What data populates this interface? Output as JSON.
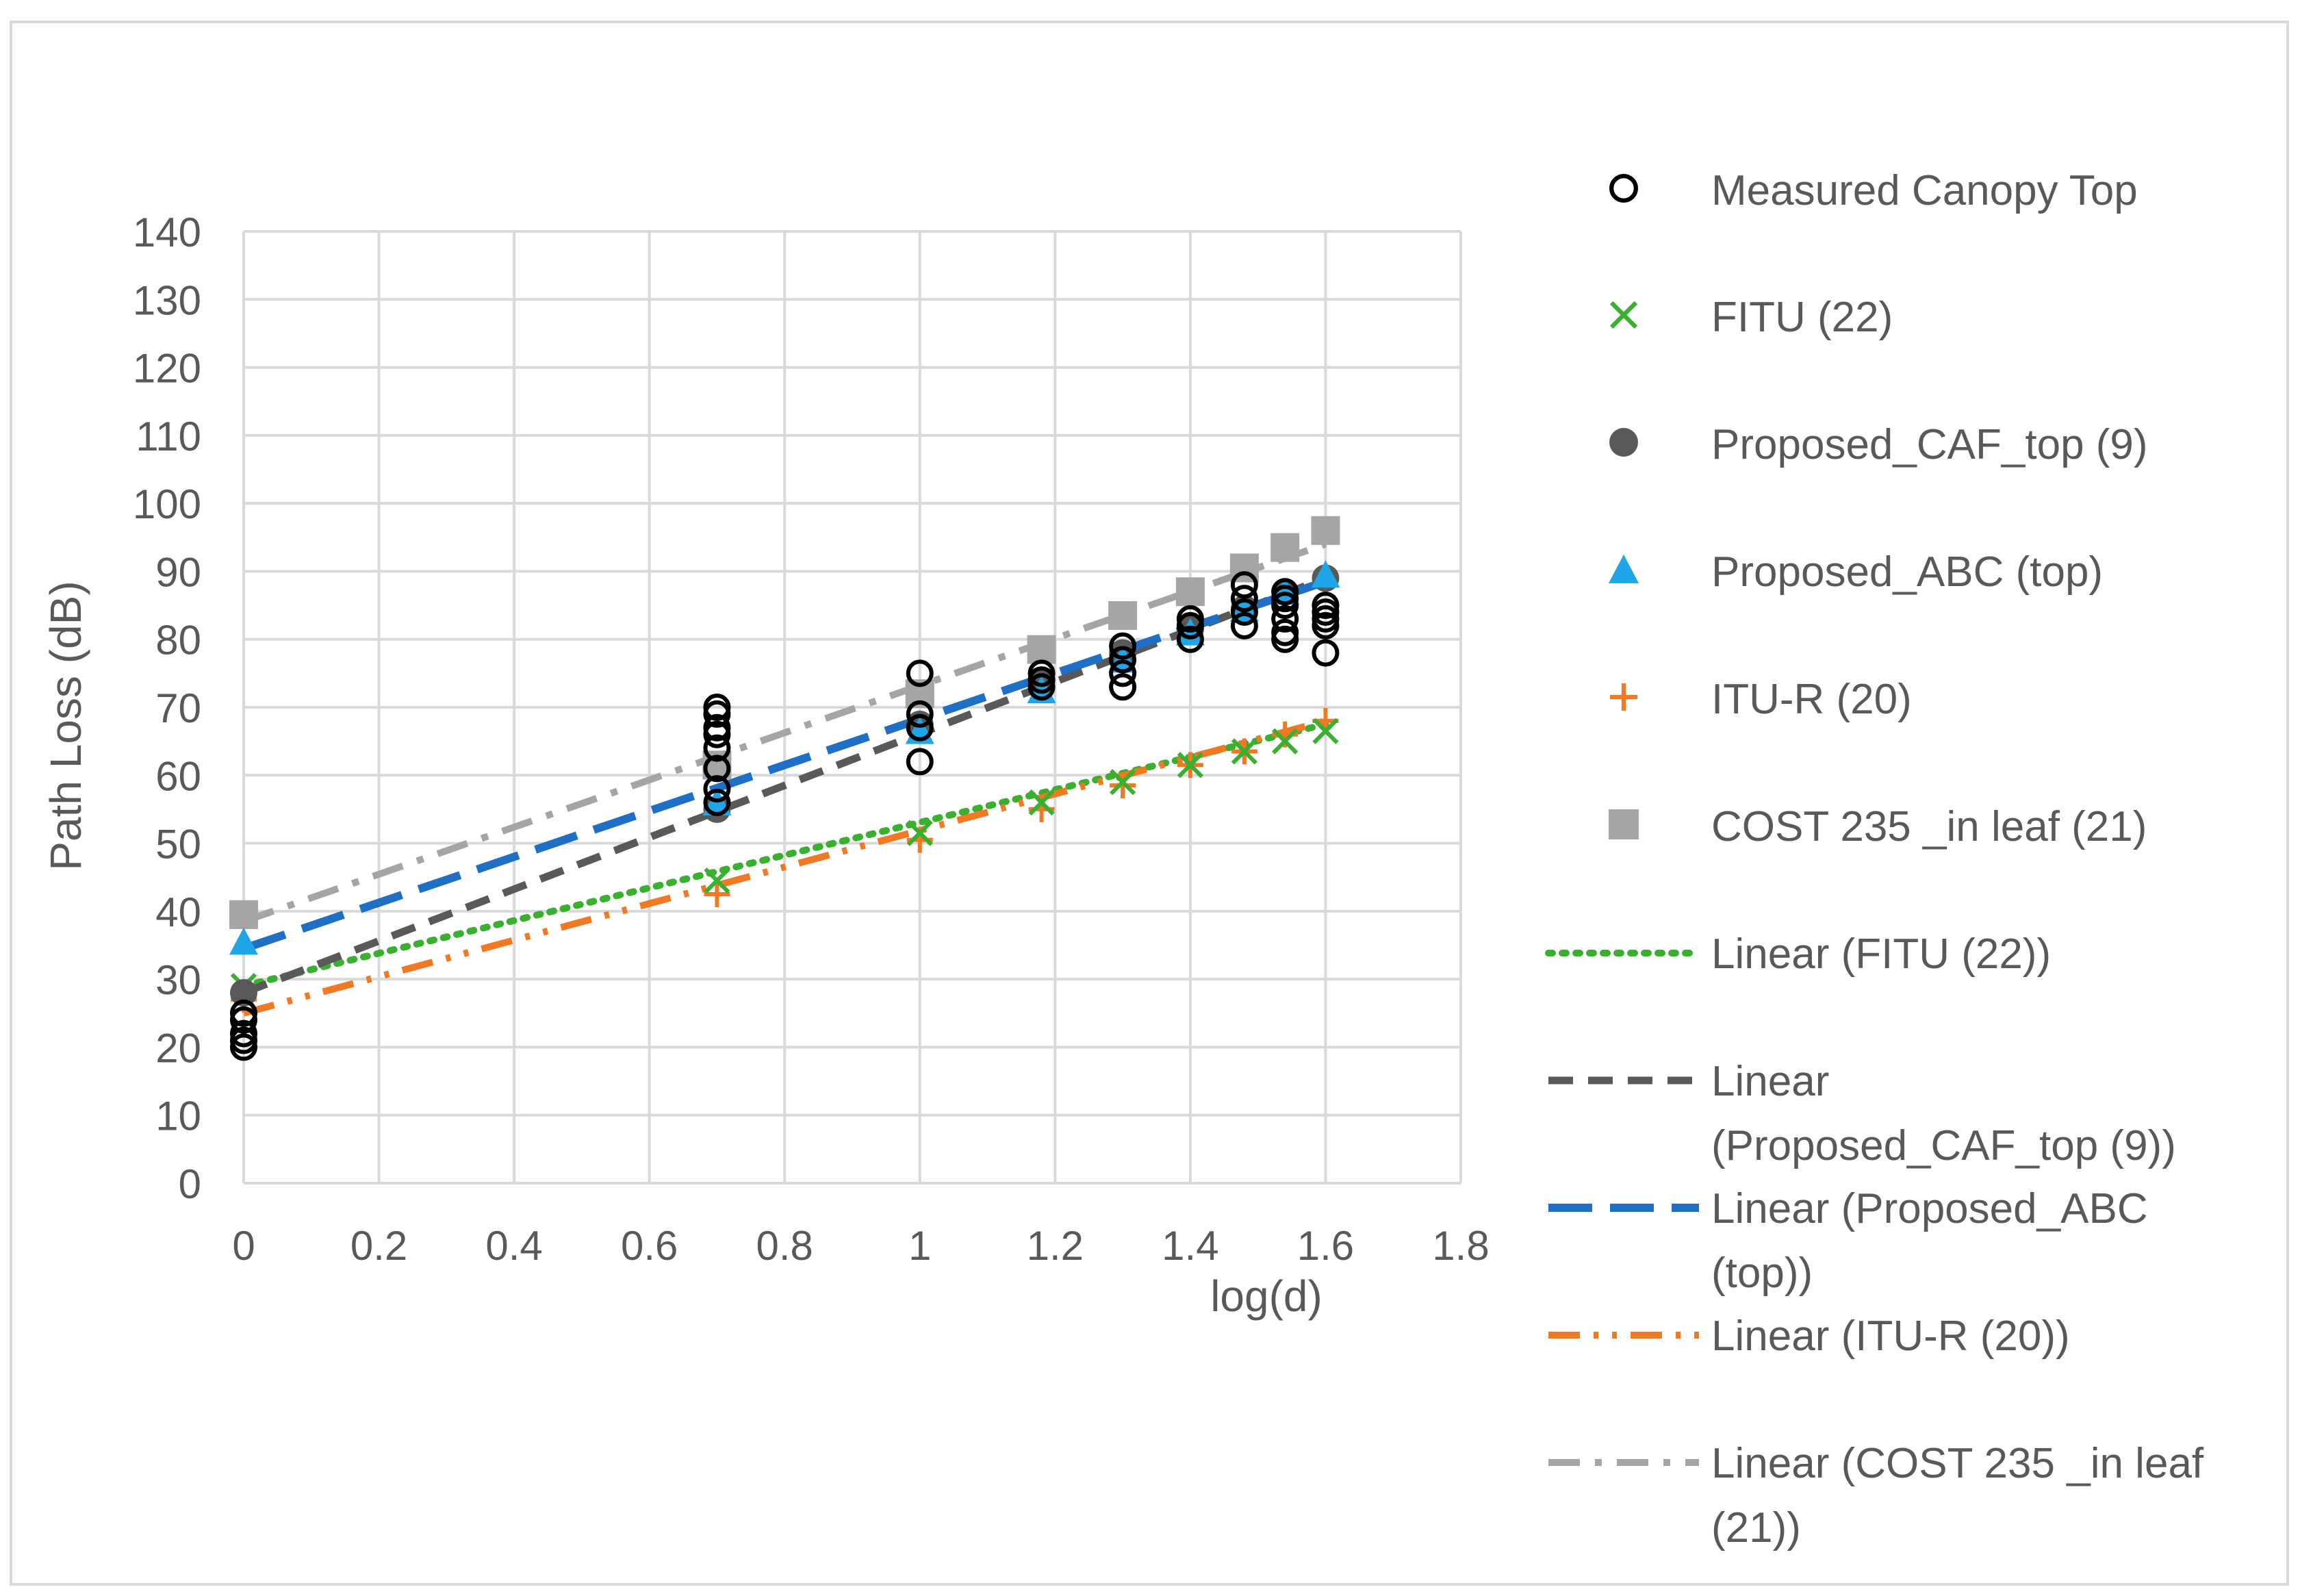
{
  "chart_data": {
    "type": "scatter",
    "title": "",
    "xlabel": "log(d)",
    "ylabel": "Path Loss (dB)",
    "xlim": [
      0,
      1.8
    ],
    "ylim": [
      0,
      140
    ],
    "xticks": [
      "0",
      "0.2",
      "0.4",
      "0.6",
      "0.8",
      "1",
      "1.2",
      "1.4",
      "1.6",
      "1.8"
    ],
    "yticks": [
      "0",
      "10",
      "20",
      "30",
      "40",
      "50",
      "60",
      "70",
      "80",
      "90",
      "100",
      "110",
      "120",
      "130",
      "140"
    ],
    "grid": true,
    "legend_position": "right",
    "colors": {
      "measured": "#000000",
      "fitu": "#3BAF2F",
      "caf": "#595959",
      "abc": "#1FA6E9",
      "abc_line": "#1F6FC4",
      "itur": "#F07A24",
      "cost": "#A5A5A5",
      "axis_text": "#595959",
      "grid": "#D9D9D9"
    },
    "series": [
      {
        "name": "Measured Canopy Top",
        "marker": "open-circle",
        "color": "#000000",
        "points": [
          [
            0,
            20
          ],
          [
            0,
            21
          ],
          [
            0,
            22
          ],
          [
            0,
            24
          ],
          [
            0,
            25
          ],
          [
            0.7,
            56
          ],
          [
            0.7,
            58
          ],
          [
            0.7,
            61
          ],
          [
            0.7,
            64
          ],
          [
            0.7,
            66
          ],
          [
            0.7,
            67
          ],
          [
            0.7,
            69
          ],
          [
            0.7,
            70
          ],
          [
            1,
            62
          ],
          [
            1,
            67
          ],
          [
            1,
            69
          ],
          [
            1,
            75
          ],
          [
            1.18,
            73
          ],
          [
            1.18,
            74
          ],
          [
            1.18,
            75
          ],
          [
            1.3,
            73
          ],
          [
            1.3,
            75
          ],
          [
            1.3,
            77
          ],
          [
            1.3,
            79
          ],
          [
            1.4,
            80
          ],
          [
            1.4,
            82
          ],
          [
            1.4,
            83
          ],
          [
            1.48,
            82
          ],
          [
            1.48,
            84
          ],
          [
            1.48,
            86
          ],
          [
            1.48,
            88
          ],
          [
            1.54,
            80
          ],
          [
            1.54,
            81
          ],
          [
            1.54,
            83
          ],
          [
            1.54,
            85
          ],
          [
            1.54,
            86
          ],
          [
            1.54,
            87
          ],
          [
            1.6,
            78
          ],
          [
            1.6,
            82
          ],
          [
            1.6,
            83
          ],
          [
            1.6,
            84
          ],
          [
            1.6,
            85
          ]
        ]
      },
      {
        "name": "FITU (22)",
        "marker": "x",
        "color": "#3BAF2F",
        "points": [
          [
            0,
            29
          ],
          [
            0.7,
            44.5
          ],
          [
            1,
            51.5
          ],
          [
            1.18,
            56
          ],
          [
            1.3,
            59
          ],
          [
            1.4,
            61.5
          ],
          [
            1.48,
            63.5
          ],
          [
            1.54,
            65
          ],
          [
            1.6,
            66.5
          ]
        ]
      },
      {
        "name": "Proposed_CAF_top (9)",
        "marker": "filled-circle",
        "color": "#595959",
        "points": [
          [
            0,
            28
          ],
          [
            0.7,
            55
          ],
          [
            1,
            67.5
          ],
          [
            1.18,
            74
          ],
          [
            1.3,
            78
          ],
          [
            1.4,
            81.5
          ],
          [
            1.48,
            84.5
          ],
          [
            1.54,
            87
          ],
          [
            1.6,
            89
          ]
        ]
      },
      {
        "name": "Proposed_ABC (top)",
        "marker": "triangle",
        "color": "#1FA6E9",
        "points": [
          [
            0,
            35.5
          ],
          [
            0.7,
            56
          ],
          [
            1,
            66.5
          ],
          [
            1.18,
            72.5
          ],
          [
            1.3,
            77
          ],
          [
            1.4,
            81
          ],
          [
            1.48,
            84.5
          ],
          [
            1.54,
            87
          ],
          [
            1.6,
            89.5
          ]
        ]
      },
      {
        "name": "ITU-R (20)",
        "marker": "plus",
        "color": "#F07A24",
        "points": [
          [
            0,
            27
          ],
          [
            0.7,
            42.5
          ],
          [
            1,
            50.5
          ],
          [
            1.18,
            55
          ],
          [
            1.3,
            58.5
          ],
          [
            1.4,
            61.5
          ],
          [
            1.48,
            63.5
          ],
          [
            1.54,
            66
          ],
          [
            1.6,
            68
          ]
        ]
      },
      {
        "name": "COST 235 _in leaf (21)",
        "marker": "square",
        "color": "#A5A5A5",
        "points": [
          [
            0,
            39.5
          ],
          [
            0.7,
            61.5
          ],
          [
            1,
            72
          ],
          [
            1.18,
            78.5
          ],
          [
            1.3,
            83.5
          ],
          [
            1.4,
            87
          ],
          [
            1.48,
            90.5
          ],
          [
            1.54,
            93.5
          ],
          [
            1.6,
            96
          ]
        ]
      }
    ],
    "trendlines": [
      {
        "name": "Linear (FITU (22))",
        "label_lines": [
          "Linear (FITU (22))"
        ],
        "color": "#3BAF2F",
        "dash": "dot",
        "start": [
          0,
          29
        ],
        "end": [
          1.6,
          67.5
        ]
      },
      {
        "name": "Linear (Proposed_CAF_top (9))",
        "label_lines": [
          "Linear",
          "(Proposed_CAF_top (9))"
        ],
        "color": "#595959",
        "dash": "dash",
        "start": [
          0,
          28
        ],
        "end": [
          1.6,
          89
        ]
      },
      {
        "name": "Linear (Proposed_ABC (top))",
        "label_lines": [
          "Linear (Proposed_ABC",
          "(top))"
        ],
        "color": "#1F6FC4",
        "dash": "longdash",
        "start": [
          0,
          34.5
        ],
        "end": [
          1.6,
          88.5
        ]
      },
      {
        "name": "Linear (ITU-R (20))",
        "label_lines": [
          "Linear (ITU-R (20))"
        ],
        "color": "#F07A24",
        "dash": "dashdotdot",
        "start": [
          0,
          25
        ],
        "end": [
          1.6,
          68
        ]
      },
      {
        "name": "Linear (COST 235 _in leaf (21))",
        "label_lines": [
          "Linear (COST 235 _in leaf",
          "(21))"
        ],
        "color": "#A5A5A5",
        "dash": "dashdot",
        "start": [
          0,
          38.5
        ],
        "end": [
          1.6,
          94
        ]
      }
    ]
  }
}
